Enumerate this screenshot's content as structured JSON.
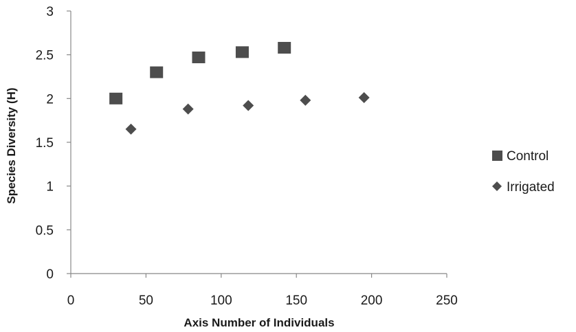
{
  "chart_data": {
    "type": "scatter",
    "title": "",
    "xlabel": "Axis Number of Individuals",
    "ylabel": "Species Diversity (H)",
    "xlim": [
      0,
      250
    ],
    "ylim": [
      0,
      3
    ],
    "x_ticks": [
      "0",
      "50",
      "100",
      "150",
      "200",
      "250"
    ],
    "y_ticks": [
      "0",
      "0.5",
      "1",
      "1.5",
      "2",
      "2.5",
      "3"
    ],
    "grid": false,
    "legend_position": "right",
    "series": [
      {
        "name": "Control",
        "marker": "square",
        "color": "#4d4d4d",
        "points": [
          {
            "x": 30,
            "y": 2.0
          },
          {
            "x": 57,
            "y": 2.3
          },
          {
            "x": 85,
            "y": 2.47
          },
          {
            "x": 114,
            "y": 2.53
          },
          {
            "x": 142,
            "y": 2.58
          }
        ]
      },
      {
        "name": "Irrigated",
        "marker": "diamond",
        "color": "#4d4d4d",
        "points": [
          {
            "x": 40,
            "y": 1.65
          },
          {
            "x": 78,
            "y": 1.88
          },
          {
            "x": 118,
            "y": 1.92
          },
          {
            "x": 156,
            "y": 1.98
          },
          {
            "x": 195,
            "y": 2.01
          }
        ]
      }
    ]
  }
}
